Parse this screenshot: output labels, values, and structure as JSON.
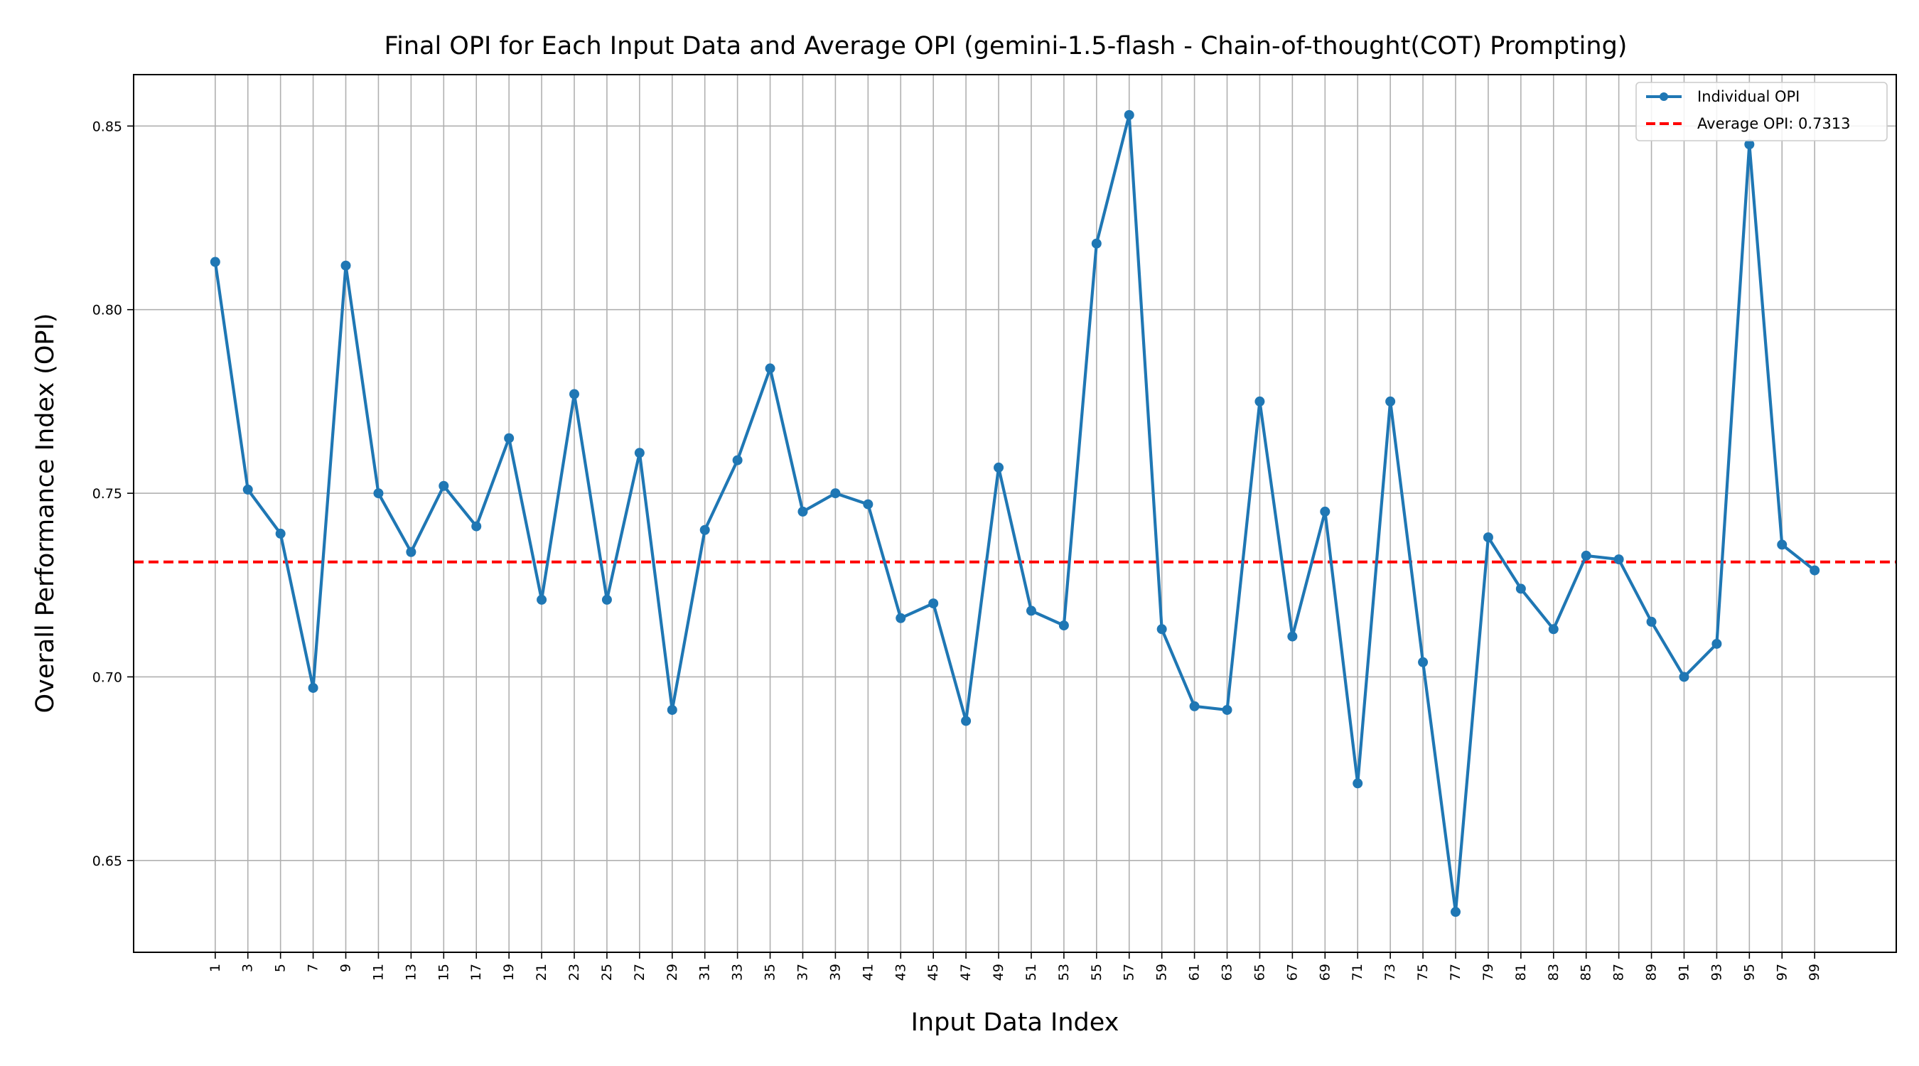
{
  "chart_data": {
    "type": "line",
    "title": "Final OPI for Each Input Data and Average OPI (gemini-1.5-flash - Chain-of-thought(COT) Prompting)",
    "xlabel": "Input Data Index",
    "ylabel": "Overall Performance Index (OPI)",
    "x": [
      1,
      3,
      5,
      7,
      9,
      11,
      13,
      15,
      17,
      19,
      21,
      23,
      25,
      27,
      29,
      31,
      33,
      35,
      37,
      39,
      41,
      43,
      45,
      47,
      49,
      51,
      53,
      55,
      57,
      59,
      61,
      63,
      65,
      67,
      69,
      71,
      73,
      75,
      77,
      79,
      81,
      83,
      85,
      87,
      89,
      91,
      93,
      95,
      97,
      99
    ],
    "x_tick_labels": [
      "1",
      "3",
      "5",
      "7",
      "9",
      "11",
      "13",
      "15",
      "17",
      "19",
      "21",
      "23",
      "25",
      "27",
      "29",
      "31",
      "33",
      "35",
      "37",
      "39",
      "41",
      "43",
      "45",
      "47",
      "49",
      "51",
      "53",
      "55",
      "57",
      "59",
      "61",
      "63",
      "65",
      "67",
      "69",
      "71",
      "73",
      "75",
      "77",
      "79",
      "81",
      "83",
      "85",
      "87",
      "89",
      "91",
      "93",
      "95",
      "97",
      "99"
    ],
    "y_ticks": [
      0.65,
      0.7,
      0.75,
      0.8,
      0.85
    ],
    "y_tick_labels": [
      "0.65",
      "0.70",
      "0.75",
      "0.80",
      "0.85"
    ],
    "ylim": [
      0.625,
      0.864
    ],
    "xlim": [
      -4,
      104
    ],
    "grid": true,
    "legend_position": "top-right",
    "series": [
      {
        "name": "Individual OPI",
        "color": "#1f77b4",
        "values": [
          0.813,
          0.751,
          0.739,
          0.697,
          0.812,
          0.75,
          0.734,
          0.752,
          0.741,
          0.765,
          0.721,
          0.777,
          0.721,
          0.761,
          0.691,
          0.74,
          0.759,
          0.784,
          0.745,
          0.75,
          0.747,
          0.716,
          0.72,
          0.688,
          0.757,
          0.718,
          0.714,
          0.818,
          0.853,
          0.713,
          0.692,
          0.691,
          0.775,
          0.711,
          0.745,
          0.671,
          0.775,
          0.704,
          0.636,
          0.738,
          0.724,
          0.713,
          0.733,
          0.732,
          0.715,
          0.7,
          0.709,
          0.845,
          0.736,
          0.729
        ]
      }
    ],
    "reference_line": {
      "name": "Average OPI: 0.7313",
      "value": 0.7313,
      "color": "#ff0000"
    }
  }
}
